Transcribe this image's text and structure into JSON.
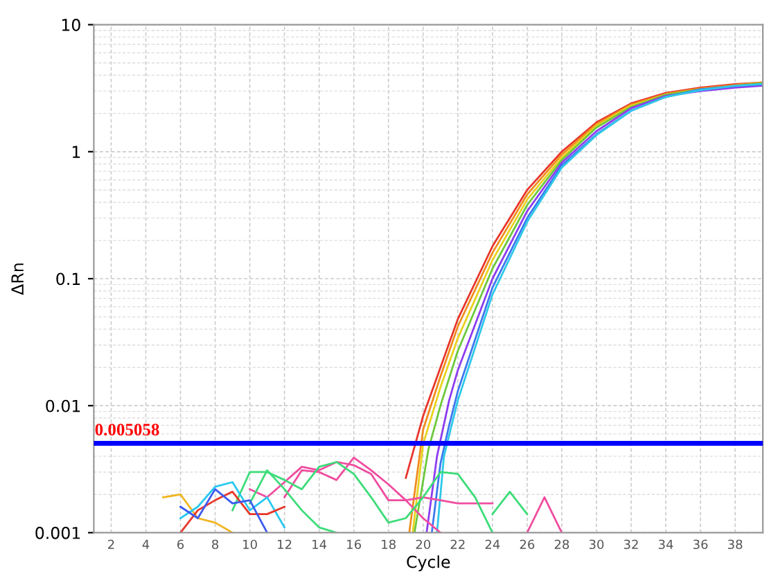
{
  "chart_data": {
    "type": "line",
    "xlabel": "Cycle",
    "ylabel": "ΔRn",
    "log": "y",
    "xlim": [
      1,
      39.6
    ],
    "ylim": [
      0.001,
      10
    ],
    "xticks": [
      2,
      4,
      6,
      8,
      10,
      12,
      14,
      16,
      18,
      20,
      22,
      24,
      26,
      28,
      30,
      32,
      34,
      36,
      38
    ],
    "yticks": [
      0.001,
      0.01,
      0.1,
      1,
      10
    ],
    "grid": true,
    "marker": "none",
    "line_style": "solid",
    "ref_lines": [
      {
        "axis": "y",
        "value": 0.005058,
        "label": "0.005058",
        "color": "#0000ff"
      }
    ],
    "series": [
      {
        "color": "#e8352a",
        "x": [
          19,
          20,
          21,
          22,
          24,
          26,
          28,
          30,
          32,
          34,
          36,
          38,
          39.5
        ],
        "values": [
          0.0027,
          0.0083,
          0.02,
          0.048,
          0.18,
          0.5,
          1.0,
          1.7,
          2.4,
          2.9,
          3.2,
          3.4,
          3.5
        ]
      },
      {
        "color": "#f08c1e",
        "x": [
          19.2,
          20,
          21,
          22,
          24,
          26,
          28,
          30,
          32,
          34,
          36,
          38,
          39.5
        ],
        "values": [
          0.001,
          0.0065,
          0.017,
          0.042,
          0.16,
          0.46,
          0.95,
          1.65,
          2.35,
          2.85,
          3.15,
          3.35,
          3.5
        ]
      },
      {
        "color": "#e8d21e",
        "x": [
          19.4,
          20,
          21,
          22,
          24,
          26,
          28,
          30,
          32,
          34,
          36,
          38,
          39.5
        ],
        "values": [
          0.001,
          0.005,
          0.014,
          0.034,
          0.14,
          0.42,
          0.9,
          1.6,
          2.3,
          2.8,
          3.1,
          3.3,
          3.45
        ]
      },
      {
        "color": "#6cc83c",
        "x": [
          19.5,
          20.3,
          21,
          22,
          24,
          26,
          28,
          30,
          32,
          34,
          36,
          38,
          39.5
        ],
        "values": [
          0.001,
          0.0045,
          0.01,
          0.027,
          0.12,
          0.38,
          0.86,
          1.55,
          2.25,
          2.8,
          3.1,
          3.3,
          3.45
        ]
      },
      {
        "color": "#8c3cf0",
        "x": [
          20.2,
          20.8,
          21.5,
          22,
          24,
          26,
          28,
          30,
          32,
          34,
          36,
          38,
          39.5
        ],
        "values": [
          0.001,
          0.004,
          0.011,
          0.019,
          0.1,
          0.34,
          0.82,
          1.45,
          2.2,
          2.75,
          3.0,
          3.2,
          3.3
        ]
      },
      {
        "color": "#3c78f0",
        "x": [
          20.5,
          21,
          21.5,
          22,
          24,
          26,
          28,
          30,
          32,
          34,
          36,
          38,
          39.5
        ],
        "values": [
          0.001,
          0.0035,
          0.007,
          0.013,
          0.085,
          0.3,
          0.78,
          1.37,
          2.1,
          2.7,
          3.1,
          3.3,
          3.4
        ]
      },
      {
        "color": "#2ec8e8",
        "x": [
          20.8,
          21.2,
          22,
          24,
          26,
          28,
          30,
          32,
          34,
          36,
          38,
          39.5
        ],
        "values": [
          0.001,
          0.004,
          0.011,
          0.075,
          0.28,
          0.75,
          1.35,
          2.1,
          2.7,
          3.05,
          3.3,
          3.4
        ]
      },
      {
        "color": "#f04ca0",
        "x": [
          10,
          11,
          12,
          13,
          14,
          15,
          16,
          17,
          18,
          19,
          20,
          21,
          22,
          23,
          24
        ],
        "values": [
          0.0022,
          0.0019,
          0.0025,
          0.0033,
          0.0031,
          0.0036,
          0.0034,
          0.0029,
          0.0018,
          0.0018,
          0.0019,
          0.0018,
          0.0017,
          0.0017,
          0.0017
        ]
      },
      {
        "color": "#f04ca0",
        "x": [
          12,
          13,
          14,
          15,
          16,
          17,
          18,
          19,
          20,
          21
        ],
        "values": [
          0.0019,
          0.0031,
          0.003,
          0.0026,
          0.0039,
          0.0031,
          0.0024,
          0.0018,
          0.0013,
          0.001
        ]
      },
      {
        "color": "#3cdc78",
        "x": [
          9,
          10,
          11,
          12,
          13,
          14,
          15,
          16,
          17,
          18,
          19,
          20,
          21,
          22,
          23,
          24
        ],
        "values": [
          0.0015,
          0.003,
          0.003,
          0.0026,
          0.0022,
          0.0033,
          0.0036,
          0.0029,
          0.0019,
          0.0012,
          0.0013,
          0.0019,
          0.003,
          0.0029,
          0.0019,
          0.001
        ]
      },
      {
        "color": "#3cdc78",
        "x": [
          10,
          11,
          12,
          13,
          14,
          15
        ],
        "values": [
          0.0017,
          0.0031,
          0.0022,
          0.0015,
          0.0011,
          0.001
        ]
      },
      {
        "color": "#f0b41e",
        "x": [
          5,
          6,
          7,
          8,
          9
        ],
        "values": [
          0.0019,
          0.002,
          0.0013,
          0.0012,
          0.001
        ]
      },
      {
        "color": "#28c8f0",
        "x": [
          6,
          7,
          8,
          9,
          10,
          11,
          12
        ],
        "values": [
          0.0013,
          0.0016,
          0.0023,
          0.0025,
          0.0015,
          0.0019,
          0.0011
        ]
      },
      {
        "color": "#e8352a",
        "x": [
          6,
          7,
          8,
          9,
          10,
          11,
          12
        ],
        "values": [
          0.001,
          0.0015,
          0.0018,
          0.0021,
          0.0014,
          0.0014,
          0.0016
        ]
      },
      {
        "color": "#3c5af0",
        "x": [
          6,
          7,
          8,
          9,
          10,
          11
        ],
        "values": [
          0.0016,
          0.0013,
          0.0022,
          0.0017,
          0.0018,
          0.001
        ]
      },
      {
        "color": "#f04ca0",
        "x": [
          26,
          27,
          28
        ],
        "values": [
          0.001,
          0.0019,
          0.001
        ]
      },
      {
        "color": "#3cdc78",
        "x": [
          24,
          25,
          26
        ],
        "values": [
          0.0014,
          0.0021,
          0.0014
        ]
      }
    ]
  }
}
